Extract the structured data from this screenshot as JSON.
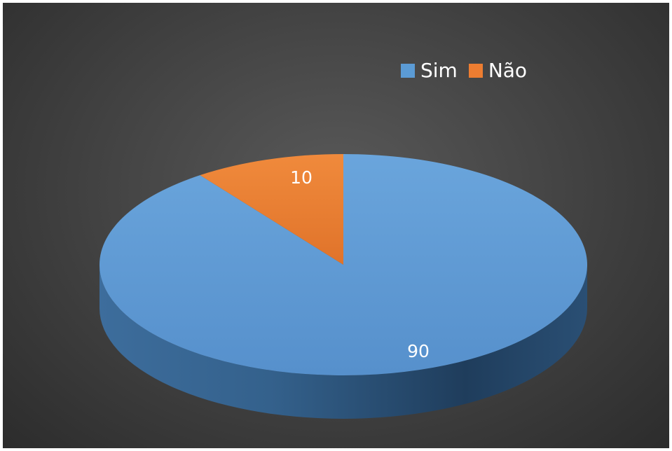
{
  "chart_data": {
    "type": "pie",
    "categories": [
      "Sim",
      "Não"
    ],
    "values": [
      90,
      10
    ],
    "data_labels": [
      "90",
      "10"
    ],
    "colors": {
      "Sim": "#5b9bd5",
      "Não": "#ed7d31"
    },
    "style": "3d",
    "legend_position": "top-right",
    "title": ""
  }
}
